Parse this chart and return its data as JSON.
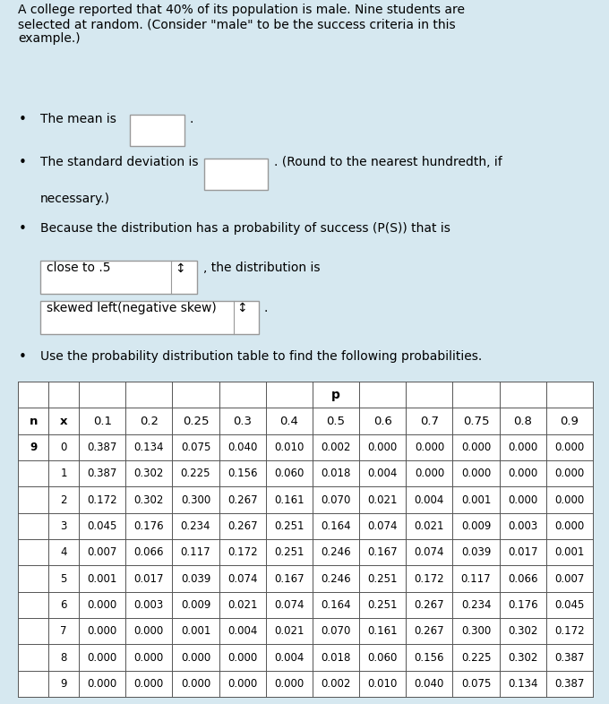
{
  "background_color": "#d6e8f0",
  "text_color": "#000000",
  "title_text": "A college reported that 40% of its population is male. Nine students are\nselected at random. (Consider \"male\" to be the success criteria in this\nexample.)",
  "bullet1_text": "The mean is",
  "bullet2_text": "The standard deviation is",
  "bullet3_text": "Because the distribution has a probability of success (P(S)) that is",
  "dropdown1_text": "close to .5",
  "dropdown1_suffix": ", the distribution is",
  "dropdown2_text": "skewed left(negative skew)",
  "bullet4_text": "Use the probability distribution table to find the following probabilities.",
  "p_label": "p",
  "col_headers": [
    "n",
    "x",
    "0.1",
    "0.2",
    "0.25",
    "0.3",
    "0.4",
    "0.5",
    "0.6",
    "0.7",
    "0.75",
    "0.8",
    "0.9"
  ],
  "table_data": [
    [
      "9",
      "0",
      "0.387",
      "0.134",
      "0.075",
      "0.040",
      "0.010",
      "0.002",
      "0.000",
      "0.000",
      "0.000",
      "0.000",
      "0.000"
    ],
    [
      "",
      "1",
      "0.387",
      "0.302",
      "0.225",
      "0.156",
      "0.060",
      "0.018",
      "0.004",
      "0.000",
      "0.000",
      "0.000",
      "0.000"
    ],
    [
      "",
      "2",
      "0.172",
      "0.302",
      "0.300",
      "0.267",
      "0.161",
      "0.070",
      "0.021",
      "0.004",
      "0.001",
      "0.000",
      "0.000"
    ],
    [
      "",
      "3",
      "0.045",
      "0.176",
      "0.234",
      "0.267",
      "0.251",
      "0.164",
      "0.074",
      "0.021",
      "0.009",
      "0.003",
      "0.000"
    ],
    [
      "",
      "4",
      "0.007",
      "0.066",
      "0.117",
      "0.172",
      "0.251",
      "0.246",
      "0.167",
      "0.074",
      "0.039",
      "0.017",
      "0.001"
    ],
    [
      "",
      "5",
      "0.001",
      "0.017",
      "0.039",
      "0.074",
      "0.167",
      "0.246",
      "0.251",
      "0.172",
      "0.117",
      "0.066",
      "0.007"
    ],
    [
      "",
      "6",
      "0.000",
      "0.003",
      "0.009",
      "0.021",
      "0.074",
      "0.164",
      "0.251",
      "0.267",
      "0.234",
      "0.176",
      "0.045"
    ],
    [
      "",
      "7",
      "0.000",
      "0.000",
      "0.001",
      "0.004",
      "0.021",
      "0.070",
      "0.161",
      "0.267",
      "0.300",
      "0.302",
      "0.172"
    ],
    [
      "",
      "8",
      "0.000",
      "0.000",
      "0.000",
      "0.000",
      "0.004",
      "0.018",
      "0.060",
      "0.156",
      "0.225",
      "0.302",
      "0.387"
    ],
    [
      "",
      "9",
      "0.000",
      "0.000",
      "0.000",
      "0.000",
      "0.000",
      "0.002",
      "0.010",
      "0.040",
      "0.075",
      "0.134",
      "0.387"
    ]
  ]
}
